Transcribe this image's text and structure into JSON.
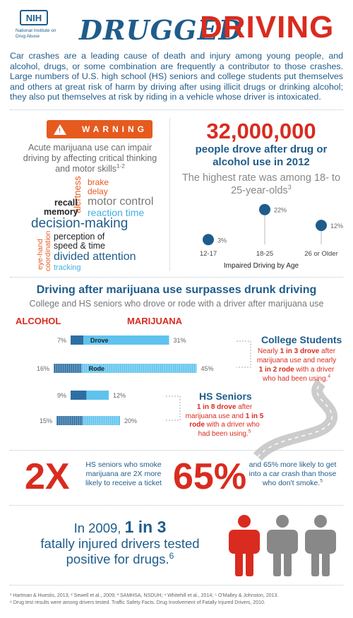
{
  "header": {
    "org_short": "NIH",
    "org_name": "National Institute on Drug Abuse",
    "title_part1": "DRUGGED",
    "title_part2": "DRIVING",
    "intro": "Car crashes are a leading cause of death and injury among young people, and alcohol, drugs, or some combination are frequently a contributor to those crashes. Large numbers of U.S. high school (HS) seniors and college students put themselves and others at great risk of harm by driving after using illicit drugs or drinking alcohol; they also put themselves at risk by riding in a vehicle whose driver is intoxicated."
  },
  "warning": {
    "banner": "WARNING",
    "icon": "exclamation-triangle-icon",
    "desc": "Acute marijuana use can impair driving by affecting critical thinking and motor skills",
    "desc_ref": "1-2",
    "words": [
      {
        "text": "brake",
        "color": "#e65a1e"
      },
      {
        "text": "delay",
        "color": "#e65a1e"
      },
      {
        "text": "alertness",
        "color": "#e65a1e"
      },
      {
        "text": "motor control",
        "color": "#777777"
      },
      {
        "text": "recall",
        "color": "#222222"
      },
      {
        "text": "memory",
        "color": "#222222"
      },
      {
        "text": "reaction time",
        "color": "#3fb0e0"
      },
      {
        "text": "decision-making",
        "color": "#1f5c8b"
      },
      {
        "text": "perception of",
        "color": "#222222"
      },
      {
        "text": "speed & time",
        "color": "#222222"
      },
      {
        "text": "eye-hand",
        "color": "#e65a1e"
      },
      {
        "text": "coordination",
        "color": "#e65a1e"
      },
      {
        "text": "divided attention",
        "color": "#1f5c8b"
      },
      {
        "text": "tracking",
        "color": "#3fb0e0"
      }
    ]
  },
  "impaired": {
    "big_number": "32,000,000",
    "desc": "people drove after drug or alcohol use in 2012",
    "rate_text": "The highest rate was among 18- to 25-year-olds",
    "rate_ref": "3",
    "caption": "Impaired Driving by Age"
  },
  "chart_data": {
    "type": "scatter",
    "categories": [
      "12-17",
      "18-25",
      "26 or Older"
    ],
    "values": [
      3,
      22,
      12
    ],
    "value_labels": [
      "3%",
      "22%",
      "12%"
    ],
    "title": "Impaired Driving by Age",
    "ylim": [
      0,
      25
    ]
  },
  "comparison": {
    "title": "Driving after marijuana use surpasses drunk driving",
    "subtitle": "College and HS seniors who drove or rode with a driver after marijuana use",
    "label_alcohol": "ALCOHOL",
    "label_marijuana": "MARIJUANA",
    "bars": [
      {
        "group": "College Students",
        "label": "Drove",
        "alcohol": 7,
        "marijuana": 31,
        "alcohol_text": "7%",
        "marijuana_text": "31%"
      },
      {
        "group": "College Students",
        "label": "Rode",
        "alcohol": 16,
        "marijuana": 45,
        "alcohol_text": "16%",
        "marijuana_text": "45%"
      },
      {
        "group": "HS Seniors",
        "label": "",
        "alcohol": 9,
        "marijuana": 12,
        "alcohol_text": "9%",
        "marijuana_text": "12%"
      },
      {
        "group": "HS Seniors",
        "label": "",
        "alcohol": 15,
        "marijuana": 20,
        "alcohol_text": "15%",
        "marijuana_text": "20%"
      }
    ],
    "college": {
      "title": "College Students",
      "desc_a": "Nearly ",
      "desc_b": "1 in 3 drove",
      "desc_c": " after marijuana use and nearly ",
      "desc_d": "1 in 2 rode",
      "desc_e": " with a driver who had been using.",
      "ref": "4"
    },
    "hs": {
      "title": "HS Seniors",
      "desc_a": "1 in 8 drove",
      "desc_b": " after marijuana use and ",
      "desc_c": "1 in 5 rode",
      "desc_d": " with a driver who had been using.",
      "ref": "5"
    }
  },
  "stats": {
    "two_x": "2X",
    "two_x_desc": "HS seniors who smoke marijuana are 2X more likely to receive a ticket",
    "sixty_five": "65%",
    "sixty_five_desc": "and 65% more likely to get into a car crash than those who don't smoke.",
    "sixty_five_ref": "5"
  },
  "fatal": {
    "year_prefix": "In 2009, ",
    "ratio": "1 in 3",
    "rest": "fatally injured drivers tested positive for drugs.",
    "ref": "6",
    "people_colors": [
      "#d92b1f",
      "#888888",
      "#888888"
    ]
  },
  "footnotes": {
    "line1": "¹ Hartman & Huestis, 2013; ² Sewell et al., 2009; ³ SAMHSA, NSDUH; ⁴ Whitehill et al., 2014; ⁵ O'Malley & Johnston, 2013.",
    "line2": "⁶ Drug test results were among drivers tested. Traffic Safety Facts. Drug Involvement of Fatally Injured Drivers, 2010."
  }
}
